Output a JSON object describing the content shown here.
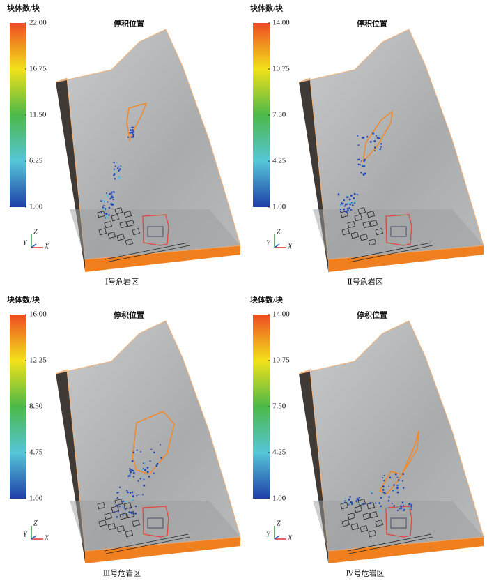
{
  "panels": [
    {
      "colorbar_label": "块体数/块",
      "title": "停积位置",
      "caption": "Ⅰ号危岩区",
      "colorbar_ticks": [
        {
          "value": 22,
          "label": "22.00"
        },
        {
          "value": 16.75,
          "label": "16.75"
        },
        {
          "value": 11.5,
          "label": "11.50"
        },
        {
          "value": 6.25,
          "label": "6.25"
        },
        {
          "value": 1,
          "label": "1.00"
        }
      ],
      "axes": {
        "z": "Z",
        "y": "Y",
        "x": "X"
      }
    },
    {
      "colorbar_label": "块体数/块",
      "title": "停积位置",
      "caption": "Ⅱ号危岩区",
      "colorbar_ticks": [
        {
          "value": 14,
          "label": "14.00"
        },
        {
          "value": 10.75,
          "label": "10.75"
        },
        {
          "value": 7.5,
          "label": "7.50"
        },
        {
          "value": 4.25,
          "label": "4.25"
        },
        {
          "value": 1,
          "label": "1.00"
        }
      ],
      "axes": {
        "z": "Z",
        "y": "Y",
        "x": "X"
      }
    },
    {
      "colorbar_label": "块体数/块",
      "title": "停积位置",
      "caption": "Ⅲ号危岩区",
      "colorbar_ticks": [
        {
          "value": 16,
          "label": "16.00"
        },
        {
          "value": 12.25,
          "label": "12.25"
        },
        {
          "value": 8.5,
          "label": "8.50"
        },
        {
          "value": 4.75,
          "label": "4.75"
        },
        {
          "value": 1,
          "label": "1.00"
        }
      ],
      "axes": {
        "z": "Z",
        "y": "Y",
        "x": "X"
      }
    },
    {
      "colorbar_label": "块体数/块",
      "title": "停积位置",
      "caption": "Ⅳ号危岩区",
      "colorbar_ticks": [
        {
          "value": 14,
          "label": "14.00"
        },
        {
          "value": 10.75,
          "label": "10.75"
        },
        {
          "value": 7.5,
          "label": "7.50"
        },
        {
          "value": 4.25,
          "label": "4.25"
        },
        {
          "value": 1,
          "label": "1.00"
        }
      ],
      "axes": {
        "z": "Z",
        "y": "Y",
        "x": "X"
      }
    }
  ]
}
